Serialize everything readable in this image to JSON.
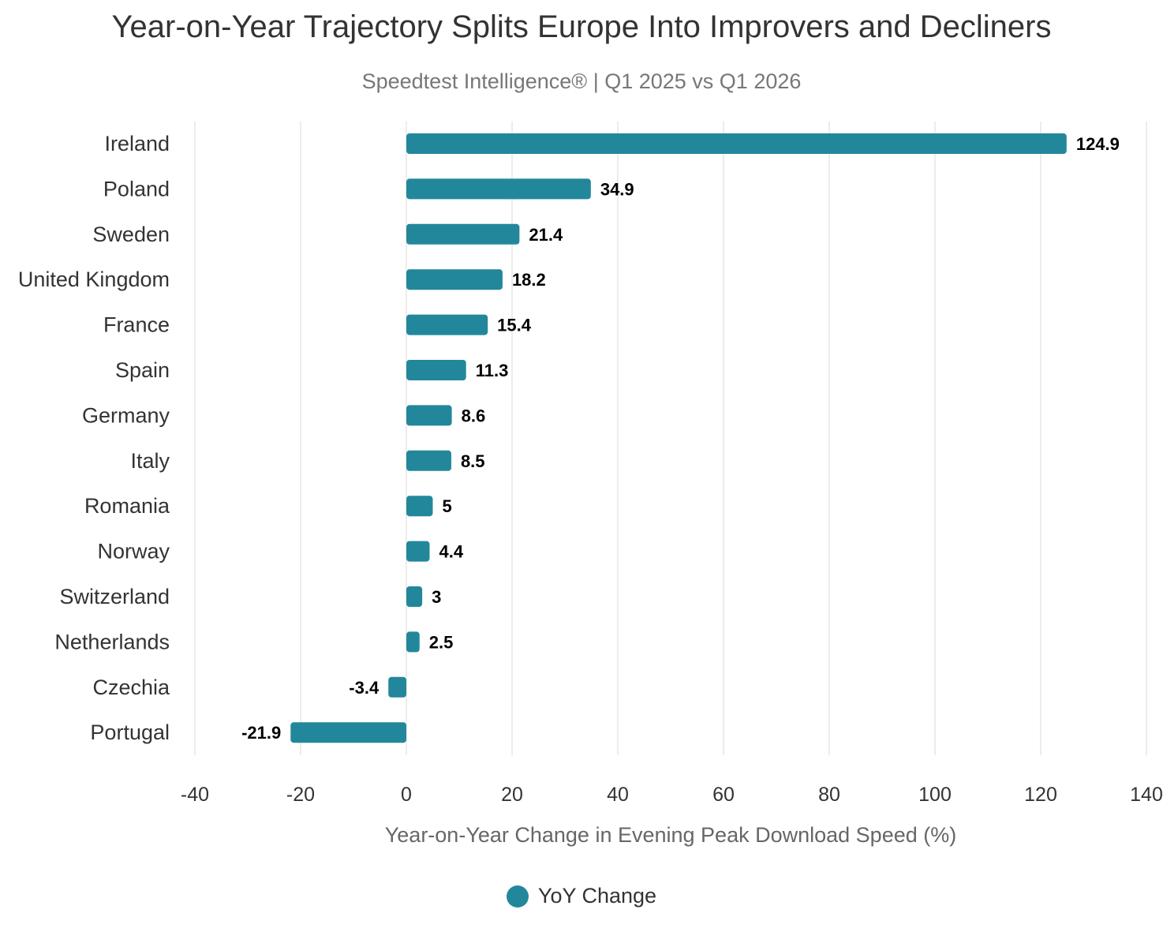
{
  "colors": {
    "bar": "#23879c",
    "grid": "#e5e5e5",
    "title": "#333333",
    "subtitle": "#777777",
    "axis_label": "#666666",
    "tick_label": "#333333",
    "value_label": "#000000"
  },
  "chart_data": {
    "type": "bar",
    "orientation": "horizontal",
    "title": "Year-on-Year Trajectory Splits Europe Into Improvers and Decliners",
    "subtitle": "Speedtest Intelligence® | Q1 2025 vs Q1 2026",
    "xlabel": "Year-on-Year Change in Evening Peak Download Speed (%)",
    "ylabel": "",
    "xlim": [
      -40,
      140
    ],
    "xticks": [
      -40,
      -20,
      0,
      20,
      40,
      60,
      80,
      100,
      120,
      140
    ],
    "grid": "vertical",
    "legend_position": "bottom",
    "categories": [
      "Ireland",
      "Poland",
      "Sweden",
      "United Kingdom",
      "France",
      "Spain",
      "Germany",
      "Italy",
      "Romania",
      "Norway",
      "Switzerland",
      "Netherlands",
      "Czechia",
      "Portugal"
    ],
    "series": [
      {
        "name": "YoY Change",
        "values": [
          124.9,
          34.9,
          21.4,
          18.2,
          15.4,
          11.3,
          8.6,
          8.5,
          5,
          4.4,
          3,
          2.5,
          -3.4,
          -21.9
        ],
        "labels": [
          "124.9",
          "34.9",
          "21.4",
          "18.2",
          "15.4",
          "11.3",
          "8.6",
          "8.5",
          "5",
          "4.4",
          "3",
          "2.5",
          "-3.4",
          "-21.9"
        ]
      }
    ]
  }
}
